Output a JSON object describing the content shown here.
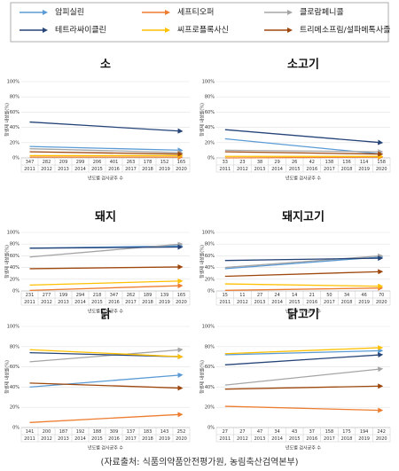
{
  "legend": [
    {
      "name": "암피실린",
      "color": "#5b9bd5"
    },
    {
      "name": "세프티오퍼",
      "color": "#ed7d31"
    },
    {
      "name": "클로람페니콜",
      "color": "#a5a5a5"
    },
    {
      "name": "테트라싸이클린",
      "color": "#264478"
    },
    {
      "name": "씨프로플록사신",
      "color": "#ffc000"
    },
    {
      "name": "트리메소프림/설파메톡사졸",
      "color": "#9e480e"
    }
  ],
  "source": "(자료출처: 식품의약품안전평가원, 농림축산검역본부)",
  "chart_data": [
    {
      "type": "line",
      "title": "소",
      "ylabel": "항생제 내성률(%)",
      "xlabel": "년도별 검사균주 수",
      "x": [
        2011,
        2020
      ],
      "xticks": [
        2011,
        2012,
        2013,
        2014,
        2015,
        2016,
        2017,
        2018,
        2019,
        2020
      ],
      "sample_counts": [
        347,
        282,
        209,
        299,
        206,
        401,
        263,
        178,
        152,
        165
      ],
      "ylim": [
        0,
        100
      ],
      "yticks": [
        {
          "value": 0,
          "label": "0%"
        },
        {
          "value": 20,
          "label": "20%"
        },
        {
          "value": 40,
          "label": "40%"
        },
        {
          "value": 60,
          "label": "60%"
        },
        {
          "value": 80,
          "label": "80%"
        },
        {
          "value": 100,
          "label": "100%"
        }
      ],
      "series": [
        {
          "values": [
            15,
            10
          ]
        },
        {
          "values": [
            1,
            1
          ]
        },
        {
          "values": [
            12,
            7
          ]
        },
        {
          "values": [
            47,
            35
          ]
        },
        {
          "values": [
            3,
            3
          ]
        },
        {
          "values": [
            8,
            5
          ]
        }
      ]
    },
    {
      "type": "line",
      "title": "소고기",
      "ylabel": "항생제 내성률(%)",
      "xlabel": "년도별 검사균주 수",
      "x": [
        2011,
        2020
      ],
      "xticks": [
        2011,
        2012,
        2013,
        2014,
        2015,
        2016,
        2017,
        2018,
        2019,
        2020
      ],
      "sample_counts": [
        33,
        23,
        38,
        29,
        26,
        42,
        138,
        136,
        114,
        158
      ],
      "ylim": [
        0,
        100
      ],
      "yticks": [
        {
          "value": 0,
          "label": "0%"
        },
        {
          "value": 20,
          "label": "20%"
        },
        {
          "value": 40,
          "label": "40%"
        },
        {
          "value": 60,
          "label": "60%"
        },
        {
          "value": 80,
          "label": "80%"
        },
        {
          "value": 100,
          "label": "100%"
        }
      ],
      "series": [
        {
          "values": [
            25,
            5
          ]
        },
        {
          "values": [
            0,
            1
          ]
        },
        {
          "values": [
            10,
            8
          ]
        },
        {
          "values": [
            37,
            20
          ]
        },
        {
          "values": [
            2,
            2
          ]
        },
        {
          "values": [
            8,
            5
          ]
        }
      ]
    },
    {
      "type": "line",
      "title": "돼지",
      "ylabel": "항생제 내성률(%)",
      "xlabel": "년도별 검사균주 수",
      "x": [
        2011,
        2020
      ],
      "xticks": [
        2011,
        2012,
        2013,
        2014,
        2015,
        2016,
        2017,
        2018,
        2019,
        2020
      ],
      "sample_counts": [
        231,
        277,
        199,
        294,
        218,
        347,
        262,
        189,
        139,
        165
      ],
      "ylim": [
        0,
        100
      ],
      "yticks": [
        {
          "value": 0,
          "label": "0%"
        },
        {
          "value": 20,
          "label": "20%"
        },
        {
          "value": 40,
          "label": "40%"
        },
        {
          "value": 60,
          "label": "60%"
        },
        {
          "value": 80,
          "label": "80%"
        },
        {
          "value": 100,
          "label": "100%"
        }
      ],
      "series": [
        {
          "values": [
            73,
            77
          ]
        },
        {
          "values": [
            1,
            9
          ]
        },
        {
          "values": [
            58,
            80
          ]
        },
        {
          "values": [
            73,
            75
          ]
        },
        {
          "values": [
            10,
            17
          ]
        },
        {
          "values": [
            38,
            41
          ]
        }
      ]
    },
    {
      "type": "line",
      "title": "돼지고기",
      "ylabel": "항생제 내성률(%)",
      "xlabel": "년도별 검사균주 수",
      "x": [
        2011,
        2020
      ],
      "xticks": [
        2011,
        2012,
        2013,
        2014,
        2015,
        2016,
        2017,
        2018,
        2019,
        2020
      ],
      "sample_counts": [
        15,
        11,
        27,
        24,
        14,
        21,
        50,
        34,
        46,
        70
      ],
      "ylim": [
        0,
        100
      ],
      "yticks": [
        {
          "value": 0,
          "label": "0%"
        },
        {
          "value": 20,
          "label": "20%"
        },
        {
          "value": 40,
          "label": "40%"
        },
        {
          "value": 60,
          "label": "60%"
        },
        {
          "value": 80,
          "label": "80%"
        },
        {
          "value": 100,
          "label": "100%"
        }
      ],
      "series": [
        {
          "values": [
            38,
            58
          ]
        },
        {
          "values": [
            1,
            5
          ]
        },
        {
          "values": [
            40,
            60
          ]
        },
        {
          "values": [
            52,
            56
          ]
        },
        {
          "values": [
            12,
            8
          ]
        },
        {
          "values": [
            25,
            33
          ]
        }
      ]
    },
    {
      "type": "line",
      "title": "닭",
      "ylabel": "항생제 내성률(%)",
      "xlabel": "년도별 검사균주 수",
      "x": [
        2011,
        2020
      ],
      "xticks": [
        2011,
        2012,
        2013,
        2014,
        2015,
        2016,
        2017,
        2018,
        2019,
        2020
      ],
      "sample_counts": [
        141,
        200,
        187,
        192,
        188,
        309,
        137,
        183,
        143,
        252
      ],
      "ylim": [
        0,
        100
      ],
      "yticks": [
        {
          "value": 0,
          "label": "0%"
        },
        {
          "value": 20,
          "label": "20%"
        },
        {
          "value": 40,
          "label": "40%"
        },
        {
          "value": 60,
          "label": "60%"
        },
        {
          "value": 80,
          "label": "80%"
        },
        {
          "value": 100,
          "label": "100%"
        }
      ],
      "series": [
        {
          "values": [
            40,
            52
          ]
        },
        {
          "values": [
            5,
            13
          ]
        },
        {
          "values": [
            65,
            77
          ]
        },
        {
          "values": [
            74,
            70
          ]
        },
        {
          "values": [
            77,
            70
          ]
        },
        {
          "values": [
            44,
            39
          ]
        }
      ]
    },
    {
      "type": "line",
      "title": "닭고기",
      "ylabel": "항생제 내성률(%)",
      "xlabel": "년도별 검사균주 수",
      "x": [
        2011,
        2020
      ],
      "xticks": [
        2011,
        2012,
        2013,
        2014,
        2015,
        2016,
        2017,
        2018,
        2019,
        2020
      ],
      "sample_counts": [
        27,
        27,
        47,
        34,
        43,
        37,
        158,
        175,
        194,
        242
      ],
      "ylim": [
        0,
        100
      ],
      "yticks": [
        {
          "value": 0,
          "label": "0%"
        },
        {
          "value": 20,
          "label": "20%"
        },
        {
          "value": 40,
          "label": "40%"
        },
        {
          "value": 60,
          "label": "60%"
        },
        {
          "value": 80,
          "label": "80%"
        },
        {
          "value": 100,
          "label": "100%"
        }
      ],
      "series": [
        {
          "values": [
            72,
            76
          ]
        },
        {
          "values": [
            21,
            17
          ]
        },
        {
          "values": [
            42,
            58
          ]
        },
        {
          "values": [
            62,
            72
          ]
        },
        {
          "values": [
            73,
            79
          ]
        },
        {
          "values": [
            38,
            41
          ]
        }
      ]
    }
  ]
}
